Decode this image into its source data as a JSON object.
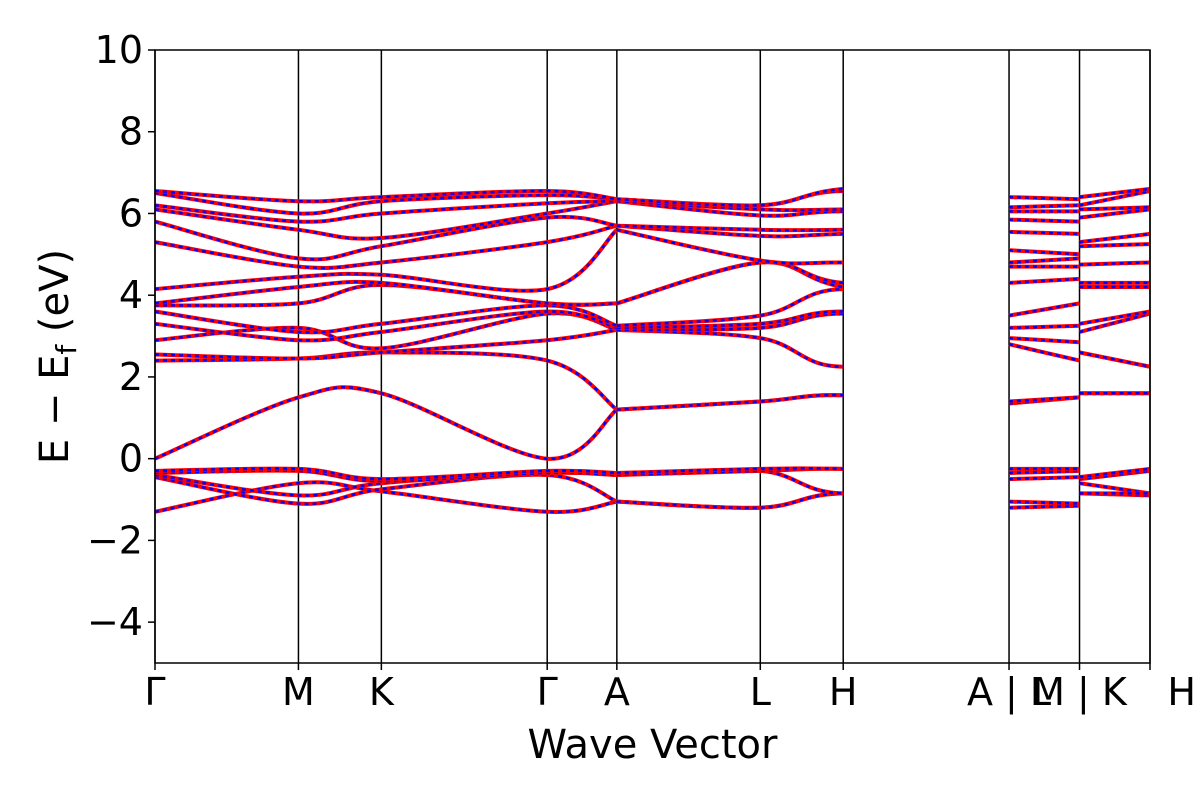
{
  "chart_data": {
    "type": "line",
    "xlabel": "Wave Vector",
    "ylabel": "E − Eᶠ (eV)",
    "ylabel_parts": {
      "main": "E − E",
      "sub": "f",
      "unit": " (eV)"
    },
    "ylim": [
      -5,
      10
    ],
    "yticks": [
      -4,
      -2,
      0,
      2,
      4,
      6,
      8,
      10
    ],
    "ytick_labels": [
      "−4",
      "−2",
      "0",
      "2",
      "4",
      "6",
      "8",
      "10"
    ],
    "xlim": [
      0,
      12.0
    ],
    "kpoints": [
      {
        "label": "Γ",
        "x": 0.0
      },
      {
        "label": "M",
        "x": 1.73
      },
      {
        "label": "K",
        "x": 2.73
      },
      {
        "label": "Γ",
        "x": 4.73
      },
      {
        "label": "A",
        "x": 5.57
      },
      {
        "label": "L",
        "x": 7.3
      },
      {
        "label": "H",
        "x": 8.3
      },
      {
        "label": "A | L",
        "x": 10.3
      },
      {
        "label": "M | K",
        "x": 11.15
      },
      {
        "label": "H",
        "x": 12.0
      }
    ],
    "segment_x": [
      0.0,
      1.73,
      2.73,
      4.73,
      5.57,
      7.3,
      8.3,
      10.3,
      11.15,
      12.0
    ],
    "colors": {
      "bands_a": "#ff0000",
      "bands_b": "#0000ff",
      "axes": "#000000"
    },
    "bands": [
      {
        "name": "",
        "values": [
          [
            -1.3,
            -0.6,
            -0.8,
            -1.3,
            -1.05
          ],
          [
            -1.05,
            -1.2,
            -0.85,
            -1.1,
            -1.05
          ],
          [
            -1.2,
            -1.15
          ],
          [
            -0.85,
            -0.9
          ]
        ]
      },
      {
        "name": "",
        "values": [
          [
            -0.45,
            -1.1,
            -0.75,
            -0.4,
            -1.05
          ],
          [
            -1.05,
            -1.2,
            -0.85,
            -1.1,
            -1.05
          ],
          [
            -1.05,
            -1.1
          ],
          [
            -0.6,
            -0.85
          ]
        ]
      },
      {
        "name": "",
        "values": [
          [
            -0.4,
            -0.9,
            -0.6,
            -0.35,
            -0.4
          ],
          [
            -0.4,
            -0.3,
            -0.85,
            -0.45,
            -0.4
          ],
          [
            -0.5,
            -0.45
          ],
          [
            -0.85,
            -0.85
          ]
        ]
      },
      {
        "name": "",
        "values": [
          [
            -0.35,
            -0.3,
            -0.55,
            -0.35,
            -0.4
          ],
          [
            -0.4,
            -0.3,
            -0.25,
            -0.4,
            -0.4
          ],
          [
            -0.35,
            -0.3
          ],
          [
            -0.5,
            -0.3
          ]
        ]
      },
      {
        "name": "",
        "values": [
          [
            -0.3,
            -0.25,
            -0.5,
            -0.3,
            -0.35
          ],
          [
            -0.35,
            -0.25,
            -0.25,
            -0.35,
            -0.35
          ],
          [
            -0.25,
            -0.25
          ],
          [
            -0.45,
            -0.25
          ]
        ]
      },
      {
        "name": "",
        "values": [
          [
            0.0,
            1.5,
            1.6,
            0.0,
            1.2
          ],
          [
            1.2,
            1.4,
            1.55,
            1.25,
            1.2
          ],
          [
            1.35,
            1.5
          ],
          [
            1.6,
            1.6
          ]
        ]
      },
      {
        "name": "",
        "values": [
          [
            2.4,
            2.45,
            2.6,
            2.4,
            1.2
          ],
          [
            1.2,
            1.4,
            1.55,
            1.25,
            1.2
          ],
          [
            1.4,
            1.5
          ],
          [
            1.6,
            1.6
          ]
        ]
      },
      {
        "name": "",
        "values": [
          [
            2.55,
            2.45,
            2.6,
            2.9,
            3.15
          ],
          [
            3.15,
            2.95,
            2.25,
            2.95,
            3.1
          ],
          [
            2.8,
            2.4
          ],
          [
            2.6,
            2.25
          ]
        ]
      },
      {
        "name": "",
        "values": [
          [
            2.9,
            3.2,
            2.7,
            3.55,
            3.15
          ],
          [
            3.15,
            3.2,
            3.55,
            3.2,
            3.2
          ],
          [
            2.95,
            2.85
          ],
          [
            2.6,
            2.25
          ]
        ]
      },
      {
        "name": "",
        "values": [
          [
            3.3,
            2.9,
            3.1,
            3.6,
            3.2
          ],
          [
            3.2,
            3.3,
            3.6,
            3.3,
            3.3
          ],
          [
            3.2,
            3.25
          ],
          [
            3.1,
            3.55
          ]
        ]
      },
      {
        "name": "",
        "values": [
          [
            3.6,
            3.1,
            3.3,
            3.75,
            3.25
          ],
          [
            3.25,
            3.5,
            4.15,
            3.6,
            3.75
          ],
          [
            3.5,
            3.8
          ],
          [
            3.3,
            3.6
          ]
        ]
      },
      {
        "name": "",
        "values": [
          [
            3.75,
            3.8,
            4.25,
            3.8,
            3.8
          ],
          [
            3.8,
            4.8,
            4.2,
            3.8,
            3.75
          ],
          [
            4.3,
            4.4
          ],
          [
            4.2,
            4.2
          ]
        ]
      },
      {
        "name": "",
        "values": [
          [
            3.8,
            4.2,
            4.3,
            3.8,
            3.8
          ],
          [
            3.8,
            4.8,
            4.3,
            4.3,
            3.8
          ],
          [
            4.7,
            4.7
          ],
          [
            4.3,
            4.3
          ]
        ]
      },
      {
        "name": "",
        "values": [
          [
            4.15,
            4.45,
            4.5,
            4.15,
            5.6
          ],
          [
            5.6,
            4.85,
            4.8,
            4.8,
            5.7
          ],
          [
            4.8,
            4.9
          ],
          [
            4.75,
            4.8
          ]
        ]
      },
      {
        "name": "",
        "values": [
          [
            5.3,
            4.7,
            4.8,
            5.3,
            5.7
          ],
          [
            5.7,
            5.45,
            5.5,
            5.6,
            5.7
          ],
          [
            5.1,
            5.0
          ],
          [
            5.2,
            5.25
          ]
        ]
      },
      {
        "name": "",
        "values": [
          [
            5.8,
            4.9,
            5.2,
            5.9,
            5.7
          ],
          [
            5.7,
            5.6,
            5.6,
            5.65,
            5.7
          ],
          [
            5.55,
            5.5
          ],
          [
            5.3,
            5.5
          ]
        ]
      },
      {
        "name": "",
        "values": [
          [
            6.1,
            5.6,
            5.4,
            6.0,
            6.3
          ],
          [
            6.3,
            5.95,
            6.05,
            5.9,
            6.3
          ],
          [
            5.85,
            5.8
          ],
          [
            5.9,
            6.1
          ]
        ]
      },
      {
        "name": "",
        "values": [
          [
            6.2,
            5.8,
            6.0,
            6.25,
            6.3
          ],
          [
            6.3,
            6.1,
            6.1,
            6.2,
            6.3
          ],
          [
            6.05,
            6.05
          ],
          [
            6.1,
            6.15
          ]
        ]
      },
      {
        "name": "",
        "values": [
          [
            6.5,
            6.0,
            6.3,
            6.45,
            6.35
          ],
          [
            6.35,
            6.2,
            6.55,
            6.3,
            6.35
          ],
          [
            6.15,
            6.2
          ],
          [
            6.2,
            6.55
          ]
        ]
      },
      {
        "name": "",
        "values": [
          [
            6.55,
            6.3,
            6.4,
            6.55,
            6.35
          ],
          [
            6.35,
            6.2,
            6.6,
            6.75,
            6.35
          ],
          [
            6.4,
            6.35
          ],
          [
            6.4,
            6.6
          ]
        ]
      }
    ]
  }
}
